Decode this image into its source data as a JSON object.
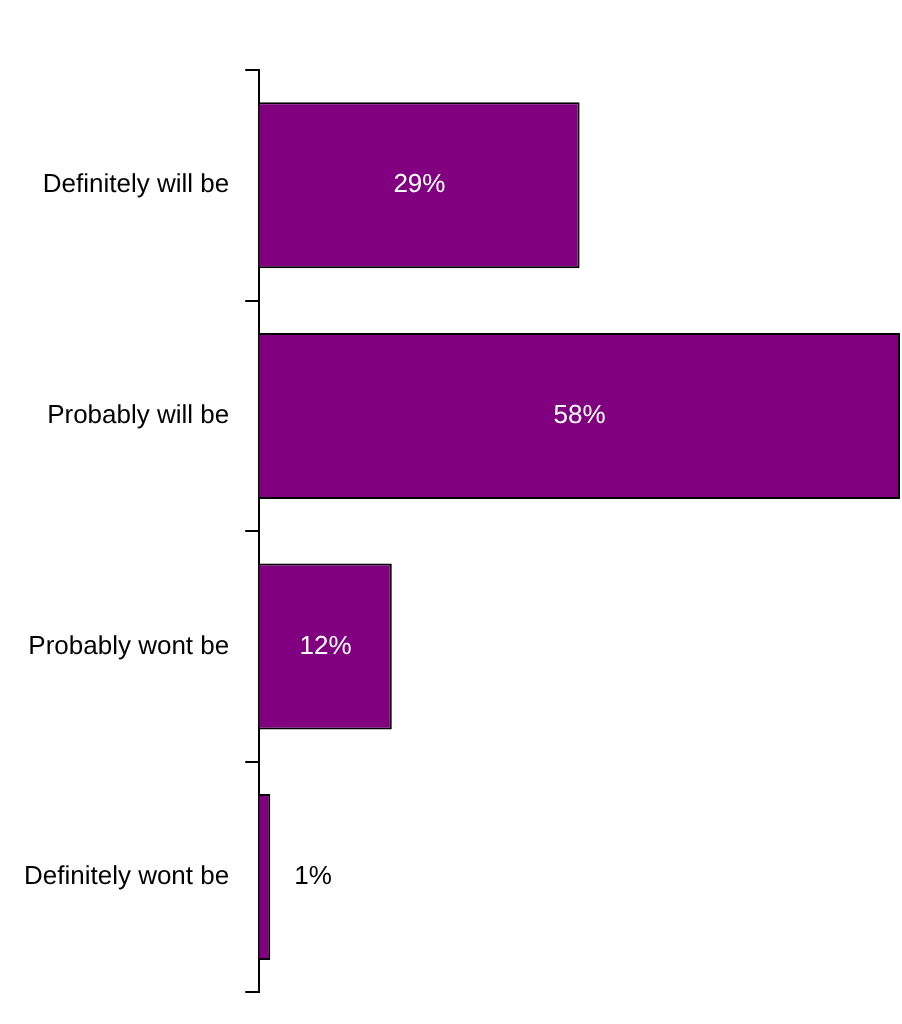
{
  "chart_data": {
    "type": "bar",
    "orientation": "horizontal",
    "categories": [
      "Definitely will be",
      "Probably will be",
      "Probably wont be",
      "Definitely wont be"
    ],
    "values": [
      29,
      58,
      12,
      1
    ],
    "value_labels": [
      "29%",
      "58%",
      "12%",
      "1%"
    ],
    "color": "#800080",
    "legend": false
  }
}
